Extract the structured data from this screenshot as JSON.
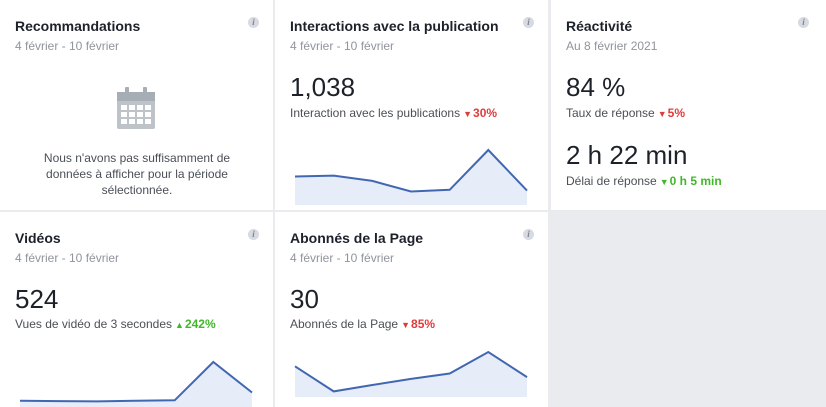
{
  "cards": {
    "recommandations": {
      "title": "Recommandations",
      "date": "4 février - 10 février",
      "empty_message_line1": "Nous n'avons pas suffisamment de",
      "empty_message_line2": "données à afficher pour la période",
      "empty_message_line3": "sélectionnée.",
      "icon": "calendar-icon"
    },
    "interactions": {
      "title": "Interactions avec la publication",
      "date": "4 février - 10 février",
      "value": "1,038",
      "label": "Interaction avec les publications",
      "delta": "30%",
      "delta_direction": "down",
      "sparkline": [
        6,
        6.2,
        5,
        2.6,
        3,
        12,
        2.8
      ]
    },
    "reactivite": {
      "title": "Réactivité",
      "date": "Au 8 février 2021",
      "value1": "84 %",
      "label1": "Taux de réponse",
      "delta1": "5%",
      "delta1_direction": "down",
      "value2": "2 h 22 min",
      "label2": "Délai de réponse",
      "delta2": "0 h 5 min",
      "delta2_direction": "up"
    },
    "videos": {
      "title": "Vidéos",
      "date": "4 février - 10 février",
      "value": "524",
      "label": "Vues de vidéo de 3 secondes",
      "delta": "242%",
      "delta_direction": "up",
      "sparkline": [
        1.2,
        1.1,
        1,
        1.2,
        1.3,
        12,
        3.5
      ]
    },
    "abonnes": {
      "title": "Abonnés de la Page",
      "date": "4 février - 10 février",
      "value": "30",
      "label": "Abonnés de la Page",
      "delta": "85%",
      "delta_direction": "down",
      "sparkline": [
        8,
        1,
        2.8,
        4.5,
        6,
        12,
        5
      ]
    }
  },
  "colors": {
    "line": "#4267b2",
    "fill": "#e7edf8",
    "down": "#e03b3b",
    "up": "#42b72a",
    "background": "#e9ebee"
  }
}
